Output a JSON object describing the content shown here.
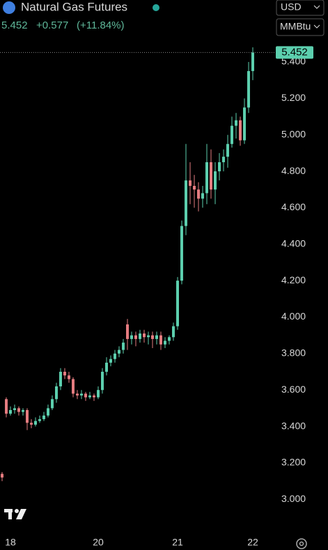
{
  "header": {
    "title": "Natural Gas Futures",
    "price": "5.452",
    "change": "+0.577",
    "change_pct": "(+11.84%)",
    "currency": "USD",
    "unit": "MMBtu"
  },
  "chart_data": {
    "type": "candlestick",
    "categories": [
      null,
      null,
      "18",
      null,
      null,
      null,
      null,
      null,
      null,
      null,
      null,
      null,
      null,
      null,
      null,
      null,
      null,
      null,
      null,
      null,
      null,
      null,
      null,
      "20",
      null,
      null,
      null,
      null,
      null,
      null,
      null,
      null,
      null,
      null,
      null,
      null,
      null,
      null,
      null,
      null,
      null,
      null,
      "21",
      null,
      null,
      null,
      null,
      null,
      null,
      null,
      null,
      null,
      null,
      null,
      null,
      null,
      null,
      null,
      null,
      null,
      "22"
    ],
    "open": [
      3.14,
      3.55,
      3.47,
      3.49,
      3.5,
      3.48,
      3.49,
      3.42,
      3.41,
      3.43,
      3.44,
      3.46,
      3.5,
      3.55,
      3.62,
      3.7,
      3.68,
      3.66,
      3.58,
      3.57,
      3.58,
      3.56,
      3.57,
      3.56,
      3.6,
      3.7,
      3.75,
      3.77,
      3.8,
      3.82,
      3.96,
      3.88,
      3.9,
      3.88,
      3.91,
      3.89,
      3.9,
      3.88,
      3.9,
      3.85,
      3.87,
      3.89,
      3.95,
      4.2,
      4.5,
      4.75,
      4.72,
      4.7,
      4.65,
      4.68,
      4.85,
      4.7,
      4.8,
      4.85,
      4.88,
      4.95,
      5.05,
      5.08,
      4.97,
      5.15,
      5.35
    ],
    "high": [
      3.15,
      3.56,
      3.51,
      3.52,
      3.51,
      3.5,
      3.5,
      3.44,
      3.45,
      3.46,
      3.48,
      3.52,
      3.57,
      3.64,
      3.72,
      3.72,
      3.7,
      3.67,
      3.6,
      3.6,
      3.59,
      3.59,
      3.58,
      3.62,
      3.72,
      3.78,
      3.79,
      3.82,
      3.84,
      3.88,
      3.99,
      3.92,
      3.92,
      3.93,
      3.93,
      3.92,
      3.92,
      3.92,
      3.92,
      3.89,
      3.9,
      3.97,
      4.22,
      4.53,
      4.95,
      4.85,
      4.78,
      4.74,
      4.72,
      4.95,
      4.92,
      4.85,
      4.9,
      4.92,
      5.0,
      5.1,
      5.12,
      5.1,
      5.2,
      5.4,
      5.48
    ],
    "low": [
      3.1,
      3.45,
      3.46,
      3.47,
      3.46,
      3.46,
      3.38,
      3.39,
      3.4,
      3.42,
      3.43,
      3.45,
      3.49,
      3.53,
      3.6,
      3.66,
      3.64,
      3.56,
      3.55,
      3.55,
      3.54,
      3.55,
      3.54,
      3.55,
      3.58,
      3.68,
      3.73,
      3.75,
      3.78,
      3.8,
      3.82,
      3.85,
      3.84,
      3.86,
      3.86,
      3.85,
      3.83,
      3.85,
      3.82,
      3.83,
      3.85,
      3.87,
      3.93,
      4.18,
      4.45,
      4.62,
      4.6,
      4.58,
      4.6,
      4.62,
      4.65,
      4.62,
      4.75,
      4.8,
      4.82,
      4.93,
      4.98,
      4.94,
      4.95,
      5.12,
      5.3
    ],
    "close": [
      3.12,
      3.47,
      3.49,
      3.5,
      3.48,
      3.49,
      3.42,
      3.41,
      3.43,
      3.44,
      3.46,
      3.5,
      3.55,
      3.62,
      3.7,
      3.68,
      3.66,
      3.58,
      3.57,
      3.58,
      3.56,
      3.57,
      3.56,
      3.6,
      3.7,
      3.75,
      3.77,
      3.8,
      3.82,
      3.86,
      3.88,
      3.9,
      3.88,
      3.91,
      3.89,
      3.9,
      3.88,
      3.9,
      3.85,
      3.87,
      3.89,
      3.95,
      4.2,
      4.5,
      4.75,
      4.72,
      4.7,
      4.65,
      4.68,
      4.85,
      4.7,
      4.8,
      4.85,
      4.88,
      4.95,
      5.05,
      5.08,
      4.97,
      5.15,
      5.35,
      5.452
    ],
    "last_price": 5.452,
    "up_color": "#5ccfae",
    "down_color": "#e57c80",
    "ylim": [
      2.81,
      5.74
    ],
    "yticks": [
      {
        "value": 3,
        "label": "3.000"
      },
      {
        "value": 3.2,
        "label": "3.200"
      },
      {
        "value": 3.4,
        "label": "3.400"
      },
      {
        "value": 3.6,
        "label": "3.600"
      },
      {
        "value": 3.8,
        "label": "3.800"
      },
      {
        "value": 4,
        "label": "4.000"
      },
      {
        "value": 4.2,
        "label": "4.200"
      },
      {
        "value": 4.4,
        "label": "4.400"
      },
      {
        "value": 4.6,
        "label": "4.600"
      },
      {
        "value": 4.8,
        "label": "4.800"
      },
      {
        "value": 5,
        "label": "5.000"
      },
      {
        "value": 5.2,
        "label": "5.200"
      },
      {
        "value": 5.4,
        "label": "5.400"
      }
    ]
  }
}
